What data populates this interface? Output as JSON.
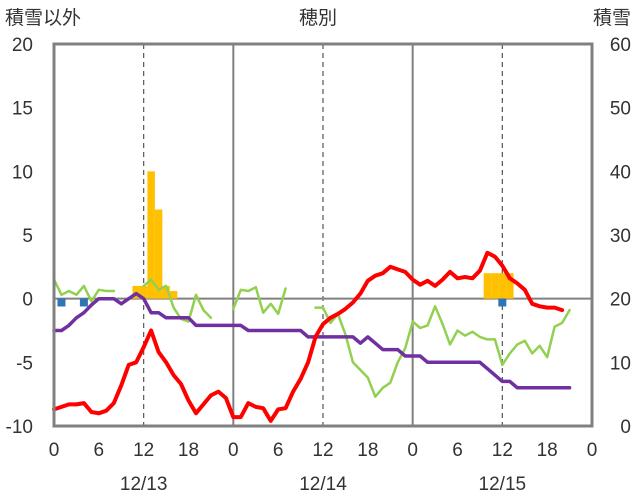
{
  "chart_data": {
    "type": "line",
    "title": "穂別",
    "y_left_label": "積雪以外",
    "y_right_label": "積雪",
    "y_left_range": [
      -10,
      20
    ],
    "y_left_ticks": [
      "20",
      "15",
      "10",
      "5",
      "0",
      "-5",
      "-10"
    ],
    "y_right_range": [
      0,
      60
    ],
    "y_right_ticks": [
      "60",
      "50",
      "40",
      "30",
      "20",
      "10",
      "0"
    ],
    "x_range_hours": [
      0,
      72
    ],
    "x_tick_labels": [
      "0",
      "6",
      "12",
      "18",
      "0",
      "6",
      "12",
      "18",
      "0",
      "6",
      "12",
      "18",
      "0"
    ],
    "date_labels": [
      {
        "hour": 12,
        "text": "12/13"
      },
      {
        "hour": 36,
        "text": "12/14"
      },
      {
        "hour": 60,
        "text": "12/15"
      }
    ],
    "day_lines_hours": [
      24,
      48
    ],
    "noon_lines_hours": [
      12,
      36,
      60
    ],
    "colors": {
      "frame": "#808080",
      "grid_day": "#808080",
      "grid_noon": "#555555",
      "zero_line": "#808080",
      "temperature": "#ff0000",
      "humidity": "#92d050",
      "pressure": "#7030a0",
      "precipitation": "#ffc000",
      "wind": "#2e75b6"
    },
    "series": [
      {
        "key": "temperature",
        "axis": "left",
        "segments": [
          [
            [
              0,
              -8.7
            ],
            [
              1,
              -8.5
            ],
            [
              2,
              -8.3
            ],
            [
              3,
              -8.3
            ],
            [
              4,
              -8.2
            ],
            [
              5,
              -8.9
            ],
            [
              6,
              -9.0
            ],
            [
              7,
              -8.8
            ],
            [
              8,
              -8.2
            ],
            [
              9,
              -6.8
            ],
            [
              10,
              -5.2
            ],
            [
              11,
              -5.0
            ],
            [
              12,
              -3.8
            ],
            [
              13,
              -2.5
            ],
            [
              14,
              -4.2
            ],
            [
              15,
              -5.0
            ],
            [
              16,
              -6.0
            ],
            [
              17,
              -6.7
            ],
            [
              18,
              -8.0
            ],
            [
              19,
              -9.0
            ],
            [
              20,
              -8.3
            ],
            [
              21,
              -7.6
            ],
            [
              22,
              -7.3
            ],
            [
              23,
              -7.8
            ],
            [
              24,
              -9.3
            ],
            [
              25,
              -9.3
            ],
            [
              26,
              -8.2
            ],
            [
              27,
              -8.5
            ],
            [
              28,
              -8.6
            ],
            [
              29,
              -9.6
            ],
            [
              30,
              -8.7
            ],
            [
              31,
              -8.6
            ],
            [
              32,
              -7.3
            ],
            [
              33,
              -6.3
            ],
            [
              34,
              -5.0
            ],
            [
              35,
              -3.0
            ],
            [
              36,
              -2.0
            ],
            [
              37,
              -1.5
            ],
            [
              38,
              -1.2
            ],
            [
              39,
              -0.8
            ],
            [
              40,
              -0.3
            ],
            [
              41,
              0.4
            ],
            [
              42,
              1.4
            ],
            [
              43,
              1.8
            ],
            [
              44,
              2.0
            ],
            [
              45,
              2.5
            ],
            [
              46,
              2.3
            ],
            [
              47,
              2.1
            ],
            [
              48,
              1.5
            ],
            [
              49,
              1.1
            ],
            [
              50,
              1.4
            ],
            [
              51,
              1.0
            ],
            [
              52,
              1.5
            ],
            [
              53,
              2.1
            ],
            [
              54,
              1.6
            ],
            [
              55,
              1.7
            ],
            [
              56,
              1.6
            ],
            [
              57,
              2.2
            ],
            [
              58,
              3.6
            ],
            [
              59,
              3.3
            ],
            [
              60,
              2.6
            ],
            [
              61,
              1.6
            ],
            [
              62,
              1.2
            ],
            [
              63,
              0.7
            ],
            [
              64,
              -0.4
            ],
            [
              65,
              -0.6
            ],
            [
              66,
              -0.7
            ],
            [
              67,
              -0.7
            ],
            [
              68,
              -0.9
            ]
          ]
        ]
      },
      {
        "key": "humidity",
        "axis": "left",
        "segments": [
          [
            [
              0,
              1.5
            ],
            [
              1,
              0.3
            ],
            [
              2,
              0.6
            ],
            [
              3,
              0.3
            ],
            [
              4,
              1.0
            ],
            [
              5,
              -0.2
            ],
            [
              6,
              0.7
            ],
            [
              7,
              0.6
            ],
            [
              8,
              0.6
            ]
          ],
          [
            [
              12,
              1.0
            ],
            [
              13,
              1.5
            ],
            [
              14,
              0.7
            ],
            [
              15,
              1.0
            ],
            [
              16,
              -0.7
            ],
            [
              17,
              -1.6
            ],
            [
              18,
              -1.8
            ],
            [
              19,
              0.3
            ],
            [
              20,
              -0.9
            ],
            [
              21,
              -1.5
            ]
          ],
          [
            [
              24,
              -0.8
            ],
            [
              25,
              0.7
            ],
            [
              26,
              0.6
            ],
            [
              27,
              0.9
            ],
            [
              28,
              -1.1
            ],
            [
              29,
              -0.4
            ],
            [
              30,
              -1.2
            ],
            [
              31,
              0.8
            ]
          ],
          [
            [
              35,
              -0.7
            ],
            [
              36,
              -0.7
            ],
            [
              37,
              -1.9
            ],
            [
              38,
              -1.2
            ],
            [
              39,
              -2.8
            ],
            [
              40,
              -5.0
            ],
            [
              41,
              -5.6
            ],
            [
              42,
              -6.2
            ],
            [
              43,
              -7.7
            ],
            [
              44,
              -7.0
            ],
            [
              45,
              -6.6
            ],
            [
              46,
              -5.0
            ],
            [
              47,
              -3.9
            ],
            [
              48,
              -1.8
            ],
            [
              49,
              -2.3
            ],
            [
              50,
              -2.1
            ],
            [
              51,
              -0.6
            ],
            [
              52,
              -2.0
            ],
            [
              53,
              -3.6
            ],
            [
              54,
              -2.5
            ],
            [
              55,
              -2.9
            ],
            [
              56,
              -2.6
            ],
            [
              57,
              -3.0
            ],
            [
              58,
              -3.2
            ],
            [
              59,
              -3.2
            ],
            [
              60,
              -5.2
            ],
            [
              61,
              -4.3
            ],
            [
              62,
              -3.6
            ],
            [
              63,
              -3.3
            ],
            [
              64,
              -4.3
            ],
            [
              65,
              -3.7
            ],
            [
              66,
              -4.6
            ],
            [
              67,
              -2.2
            ],
            [
              68,
              -1.9
            ],
            [
              69,
              -0.9
            ]
          ]
        ]
      },
      {
        "key": "pressure",
        "axis": "left",
        "segments": [
          [
            [
              0,
              -2.5
            ],
            [
              1,
              -2.5
            ],
            [
              2,
              -2.1
            ],
            [
              3,
              -1.5
            ],
            [
              4,
              -1.1
            ],
            [
              5,
              -0.5
            ],
            [
              6,
              0.0
            ],
            [
              7,
              0.0
            ],
            [
              8,
              0.0
            ],
            [
              9,
              -0.4
            ],
            [
              10,
              0.0
            ],
            [
              11,
              0.4
            ],
            [
              12,
              0.0
            ],
            [
              13,
              -1.1
            ],
            [
              14,
              -1.1
            ],
            [
              15,
              -1.5
            ],
            [
              16,
              -1.5
            ],
            [
              17,
              -1.5
            ],
            [
              18,
              -1.5
            ],
            [
              19,
              -2.1
            ],
            [
              20,
              -2.1
            ],
            [
              21,
              -2.1
            ],
            [
              22,
              -2.1
            ],
            [
              23,
              -2.1
            ],
            [
              24,
              -2.1
            ],
            [
              25,
              -2.1
            ],
            [
              26,
              -2.5
            ],
            [
              27,
              -2.5
            ],
            [
              28,
              -2.5
            ],
            [
              29,
              -2.5
            ],
            [
              30,
              -2.5
            ],
            [
              31,
              -2.5
            ],
            [
              32,
              -2.5
            ],
            [
              33,
              -2.5
            ],
            [
              34,
              -3.0
            ],
            [
              35,
              -3.0
            ],
            [
              36,
              -3.0
            ],
            [
              37,
              -3.0
            ],
            [
              38,
              -3.0
            ],
            [
              39,
              -3.0
            ],
            [
              40,
              -3.0
            ],
            [
              41,
              -3.5
            ],
            [
              42,
              -3.0
            ],
            [
              43,
              -3.5
            ],
            [
              44,
              -4.0
            ],
            [
              45,
              -4.0
            ],
            [
              46,
              -4.0
            ],
            [
              47,
              -4.5
            ],
            [
              48,
              -4.5
            ],
            [
              49,
              -4.5
            ],
            [
              50,
              -5.0
            ],
            [
              51,
              -5.0
            ],
            [
              52,
              -5.0
            ],
            [
              53,
              -5.0
            ],
            [
              54,
              -5.0
            ],
            [
              55,
              -5.0
            ],
            [
              56,
              -5.0
            ],
            [
              57,
              -5.0
            ],
            [
              58,
              -5.5
            ],
            [
              59,
              -6.0
            ],
            [
              60,
              -6.5
            ],
            [
              61,
              -6.5
            ],
            [
              62,
              -7.0
            ],
            [
              63,
              -7.0
            ],
            [
              64,
              -7.0
            ],
            [
              65,
              -7.0
            ],
            [
              66,
              -7.0
            ],
            [
              67,
              -7.0
            ],
            [
              68,
              -7.0
            ],
            [
              69,
              -7.0
            ]
          ]
        ]
      }
    ],
    "precipitation_bars": {
      "axis": "left",
      "bars": [
        [
          11,
          1.0
        ],
        [
          12,
          1.0
        ],
        [
          13,
          10.0
        ],
        [
          14,
          7.0
        ],
        [
          15,
          1.0
        ],
        [
          16,
          0.6
        ],
        [
          58,
          2.0
        ],
        [
          59,
          2.0
        ],
        [
          60,
          2.0
        ],
        [
          61,
          2.0
        ]
      ]
    },
    "wind_markers": {
      "axis": "left",
      "points": [
        [
          1,
          -0.3
        ],
        [
          4,
          -0.3
        ],
        [
          60,
          -0.3
        ]
      ]
    }
  }
}
